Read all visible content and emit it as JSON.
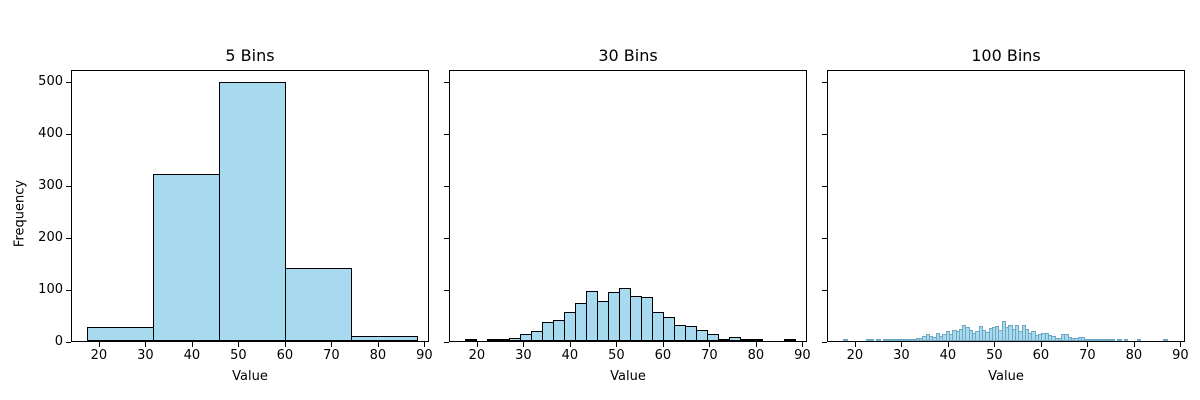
{
  "figure": {
    "ylabel": "Frequency",
    "bar_color": "#a7d9ef",
    "edge_color": "#000000"
  },
  "chart_data": [
    {
      "type": "bar",
      "title": "5 Bins",
      "xlabel": "Value",
      "ylabel": "Frequency",
      "xlim": [
        14,
        91
      ],
      "ylim": [
        0,
        523
      ],
      "xticks": [
        20,
        30,
        40,
        50,
        60,
        70,
        80,
        90
      ],
      "yticks": [
        0,
        100,
        200,
        300,
        400,
        500
      ],
      "bin_range": [
        17.5,
        88.5
      ],
      "bins": 5,
      "values": [
        26,
        322,
        498,
        141,
        9
      ]
    },
    {
      "type": "bar",
      "title": "30 Bins",
      "xlabel": "Value",
      "ylabel": "",
      "xlim": [
        14,
        91
      ],
      "ylim": [
        0,
        523
      ],
      "xticks": [
        20,
        30,
        40,
        50,
        60,
        70,
        80,
        90
      ],
      "yticks": [
        0,
        100,
        200,
        300,
        400,
        500
      ],
      "bin_range": [
        17.5,
        88.5
      ],
      "bins": 30,
      "values": [
        1,
        0,
        2,
        2,
        5,
        13,
        19,
        36,
        40,
        55,
        74,
        97,
        76,
        94,
        101,
        86,
        84,
        55,
        46,
        30,
        28,
        22,
        13,
        3,
        7,
        1,
        1,
        0,
        0,
        1
      ]
    },
    {
      "type": "bar",
      "title": "100 Bins",
      "xlabel": "Value",
      "ylabel": "",
      "xlim": [
        14,
        91
      ],
      "ylim": [
        0,
        523
      ],
      "xticks": [
        20,
        30,
        40,
        50,
        60,
        70,
        80,
        90
      ],
      "yticks": [
        0,
        100,
        200,
        300,
        400,
        500
      ],
      "bin_range": [
        17.5,
        88.5
      ],
      "bins": 100,
      "values": [
        1,
        0,
        0,
        0,
        0,
        0,
        0,
        1,
        1,
        0,
        1,
        0,
        1,
        1,
        1,
        1,
        3,
        1,
        2,
        2,
        3,
        3,
        5,
        6,
        9,
        14,
        9,
        8,
        15,
        10,
        13,
        19,
        14,
        22,
        19,
        24,
        31,
        26,
        21,
        16,
        20,
        28,
        22,
        18,
        25,
        27,
        29,
        21,
        39,
        27,
        30,
        23,
        30,
        19,
        31,
        23,
        16,
        20,
        12,
        14,
        16,
        15,
        11,
        9,
        6,
        5,
        13,
        13,
        7,
        6,
        6,
        8,
        7,
        3,
        3,
        4,
        3,
        1,
        2,
        3,
        3,
        1,
        0,
        1,
        0,
        1,
        0,
        0,
        0,
        1,
        0,
        0,
        0,
        0,
        0,
        0,
        0,
        1,
        0,
        0
      ]
    }
  ]
}
